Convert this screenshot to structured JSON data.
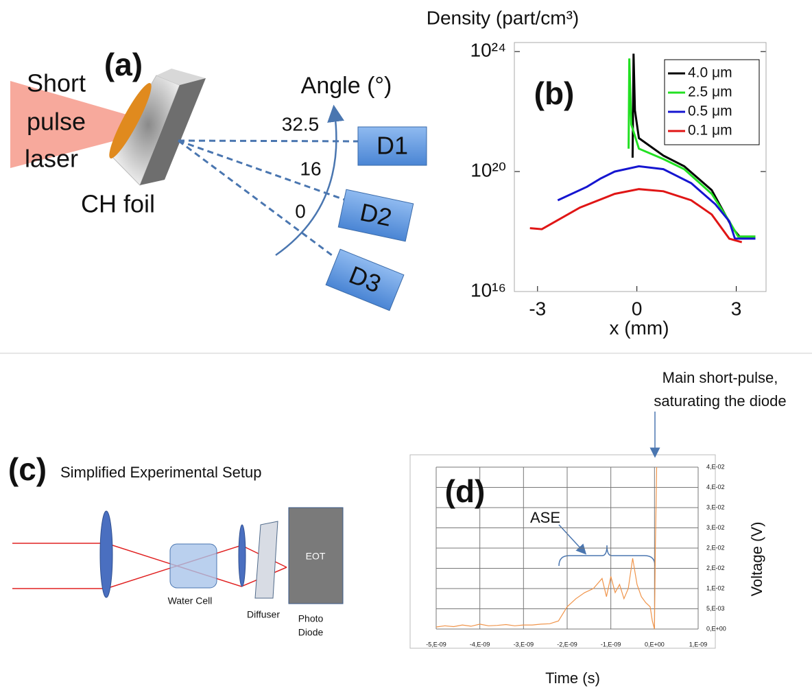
{
  "panel_a": {
    "label": "(a)",
    "laser": [
      "Short",
      "pulse",
      "laser"
    ],
    "target": "CH foil",
    "angle_axis": "Angle (°)",
    "angles": [
      32.5,
      16,
      0
    ],
    "detectors": [
      "D1",
      "D2",
      "D3"
    ]
  },
  "chart_data": [
    {
      "type": "line",
      "label": "(b)",
      "title": "Density (part/cm³)",
      "x_label": "x (mm)",
      "log_y": true,
      "xlim": [
        -3.7,
        3.9
      ],
      "xticks": [
        -3,
        0,
        3
      ],
      "ylim": [
        1e+16,
        2e+24
      ],
      "yticks": [
        {
          "value": 1e+16,
          "label": "10¹⁶"
        },
        {
          "value": 1e+20,
          "label": "10²⁰"
        },
        {
          "value": 1e+24,
          "label": "10²⁴"
        }
      ],
      "legend": "upper right",
      "series": [
        {
          "name": "4.0 μm",
          "color": "#000000",
          "x": [
            -0.13,
            -0.1,
            -0.06,
            0.06,
            0.8,
            1.43,
            2.26,
            2.89,
            3.1,
            3.58
          ],
          "values": [
            2.9e+20,
            8.5e+23,
            1.1e+22,
            1.3e+21,
            3.4e+20,
            1.5e+20,
            2.4e+19,
            1.3e+18,
            6.8e+17,
            6.8e+17
          ]
        },
        {
          "name": "2.5 μm",
          "color": "#22e022",
          "x": [
            -0.25,
            -0.23,
            -0.17,
            0.06,
            0.8,
            1.43,
            2.26,
            2.79,
            3.06,
            3.58
          ],
          "values": [
            5.8e+20,
            5.9e+23,
            3.7e+21,
            5.8e+20,
            2.6e+20,
            1.2e+20,
            1.8e+19,
            2.2e+18,
            6.8e+17,
            6.8e+17
          ]
        },
        {
          "name": "0.5 μm",
          "color": "#1515d0",
          "x": [
            -2.39,
            -1.51,
            -1.09,
            -0.67,
            0.06,
            0.8,
            1.64,
            2.37,
            2.79,
            2.96,
            3.58
          ],
          "values": [
            1.1e+19,
            3.1e+19,
            5.9e+19,
            1e+20,
            1.5e+20,
            1.2e+20,
            4.1e+19,
            8.1e+18,
            2.2e+18,
            5.8e+17,
            5.8e+17
          ]
        },
        {
          "name": "0.1 μm",
          "color": "#e01515",
          "x": [
            -3.23,
            -2.87,
            -2.45,
            -1.72,
            -0.67,
            0.06,
            0.8,
            1.64,
            2.26,
            2.79,
            3.17
          ],
          "values": [
            1.3e+18,
            1.2e+18,
            2.2e+18,
            6.3e+18,
            1.8e+19,
            2.6e+19,
            2.2e+19,
            1.1e+19,
            3.7e+18,
            5.8e+17,
            4.4e+17
          ]
        }
      ]
    },
    {
      "type": "line",
      "label": "(d)",
      "x_label": "Time (s)",
      "y_label": "Voltage (V)",
      "grid": true,
      "annotations": [
        "ASE",
        "Main short-pulse,",
        "saturating the diode"
      ],
      "xlim": [
        -5e-09,
        1e-09
      ],
      "xticks": [
        {
          "value": -5e-09,
          "label": "-5,E-09"
        },
        {
          "value": -4e-09,
          "label": "-4,E-09"
        },
        {
          "value": -3e-09,
          "label": "-3,E-09"
        },
        {
          "value": -2e-09,
          "label": "-2,E-09"
        },
        {
          "value": -1e-09,
          "label": "-1,E-09"
        },
        {
          "value": 0,
          "label": "0,E+00"
        },
        {
          "value": 1e-09,
          "label": "1,E-09"
        }
      ],
      "ylim": [
        0,
        0.04
      ],
      "yticks": [
        {
          "value": 0,
          "label": "0,E+00"
        },
        {
          "value": 0.005,
          "label": "5,E-03"
        },
        {
          "value": 0.01,
          "label": "1,E-02"
        },
        {
          "value": 0.015,
          "label": "2,E-02"
        },
        {
          "value": 0.02,
          "label": "2,E-02"
        },
        {
          "value": 0.025,
          "label": "3,E-02"
        },
        {
          "value": 0.03,
          "label": "3,E-02"
        },
        {
          "value": 0.035,
          "label": "4,E-02"
        },
        {
          "value": 0.04,
          "label": "4,E-02"
        }
      ],
      "series": [
        {
          "color": "#f0944a",
          "x": [
            -5e-09,
            -4.8e-09,
            -4.6e-09,
            -4.4e-09,
            -4.2e-09,
            -4e-09,
            -3.8e-09,
            -3.6e-09,
            -3.4e-09,
            -3.2e-09,
            -3e-09,
            -2.8e-09,
            -2.6e-09,
            -2.4e-09,
            -2.2e-09,
            -2e-09,
            -1.8e-09,
            -1.6e-09,
            -1.4e-09,
            -1.2e-09,
            -1.1e-09,
            -1e-09,
            -9e-10,
            -8e-10,
            -7e-10,
            -6e-10,
            -5e-10,
            -4e-10,
            -3e-10,
            -2e-10,
            -1e-10,
            -5e-11,
            0,
            2e-11,
            5e-11
          ],
          "values": [
            0.0005,
            0.0008,
            0.0006,
            0.001,
            0.0007,
            0.0012,
            0.0008,
            0.0009,
            0.0011,
            0.0008,
            0.001,
            0.001,
            0.0012,
            0.0013,
            0.002,
            0.0055,
            0.0075,
            0.009,
            0.01,
            0.0125,
            0.008,
            0.013,
            0.009,
            0.011,
            0.0075,
            0.01,
            0.0175,
            0.011,
            0.008,
            0.0065,
            0.0055,
            0.002,
            0,
            0.02,
            0.04
          ]
        }
      ]
    }
  ],
  "panel_c": {
    "label": "(c)",
    "title": "Simplified Experimental Setup",
    "water_cell": "Water Cell",
    "diffuser": "Diffuser",
    "sensor": "EOT",
    "diode": [
      "Photo",
      "Diode"
    ]
  }
}
